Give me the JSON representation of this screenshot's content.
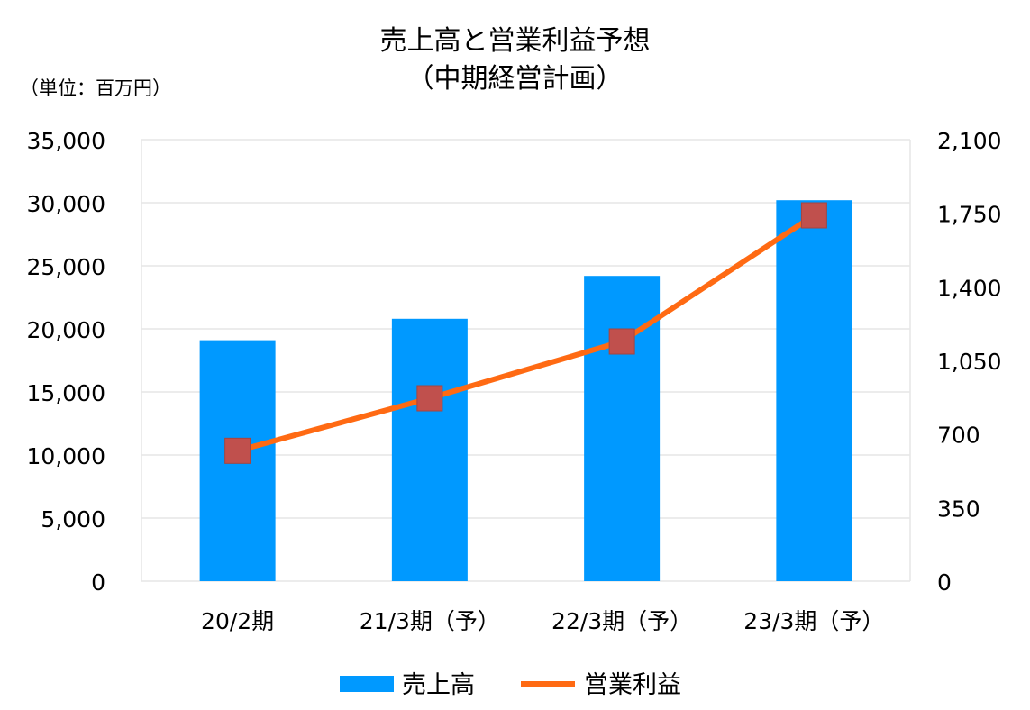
{
  "chart_data": {
    "type": "bar+line",
    "title_line1": "売上高と営業利益予想",
    "title_line2": "（中期経営計画）",
    "unit_label": "（単位：百万円）",
    "categories": [
      "20/2期",
      "21/3期（予）",
      "22/3期（予）",
      "23/3期（予）"
    ],
    "series": [
      {
        "name": "売上高",
        "type": "bar",
        "axis": "left",
        "values": [
          19100,
          20800,
          24200,
          30200
        ],
        "color": "#0099ff"
      },
      {
        "name": "営業利益",
        "type": "line",
        "axis": "right",
        "values": [
          620,
          870,
          1140,
          1740
        ],
        "color": "#ff6a13",
        "marker_color": "#c0504d"
      }
    ],
    "y_left": {
      "min": 0,
      "max": 35000,
      "ticks": [
        "0",
        "5,000",
        "10,000",
        "15,000",
        "20,000",
        "25,000",
        "30,000",
        "35,000"
      ]
    },
    "y_right": {
      "min": 0,
      "max": 2100,
      "ticks": [
        "0",
        "350",
        "700",
        "1,050",
        "1,400",
        "1,750",
        "2,100"
      ]
    },
    "grid": true,
    "legend_position": "bottom"
  }
}
